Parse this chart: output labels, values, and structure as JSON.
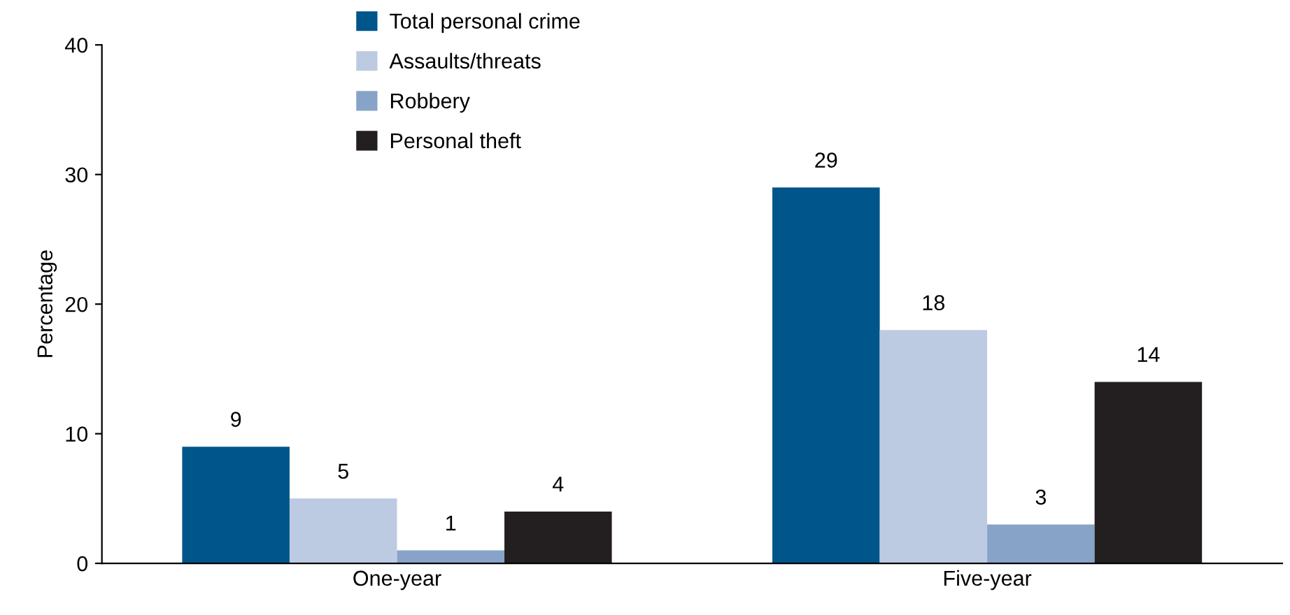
{
  "chart_data": {
    "type": "bar",
    "ylabel": "Percentage",
    "categories": [
      "One-year",
      "Five-year"
    ],
    "series": [
      {
        "name": "Total personal crime",
        "color": "#00558a",
        "values": [
          9,
          29
        ]
      },
      {
        "name": "Assaults/threats",
        "color": "#bccbe1",
        "values": [
          5,
          18
        ]
      },
      {
        "name": "Robbery",
        "color": "#87a3c8",
        "values": [
          1,
          3
        ]
      },
      {
        "name": "Personal theft",
        "color": "#231f20",
        "values": [
          4,
          14
        ]
      }
    ],
    "ylim": [
      0,
      40
    ],
    "yticks": [
      0,
      10,
      20,
      30,
      40
    ],
    "grid": false,
    "legend": "top",
    "data_labels": true
  }
}
